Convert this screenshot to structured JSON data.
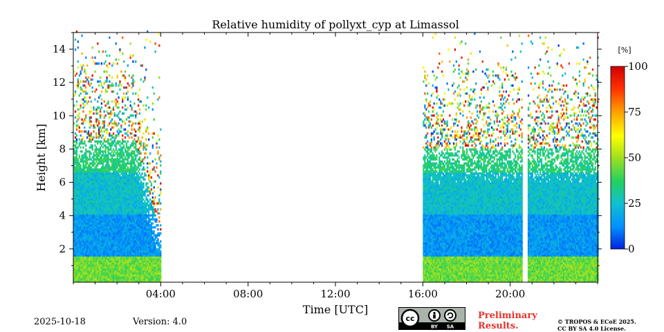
{
  "chart_data": {
    "type": "heatmap",
    "title": "Relative humidity of pollyxt_cyp at Limassol",
    "xlabel": "Time [UTC]",
    "ylabel": "Height [km]",
    "xlim": [
      0,
      24
    ],
    "ylim": [
      0,
      15
    ],
    "x_ticks": [
      4,
      8,
      12,
      16,
      20
    ],
    "x_tick_labels": [
      "04:00",
      "08:00",
      "12:00",
      "16:00",
      "20:00"
    ],
    "y_ticks": [
      2,
      4,
      6,
      8,
      10,
      12,
      14
    ],
    "y_tick_labels": [
      "2",
      "4",
      "6",
      "8",
      "10",
      "12",
      "14"
    ],
    "colorbar": {
      "unit": "[%]",
      "range": [
        0,
        100
      ],
      "ticks": [
        0,
        25,
        50,
        75,
        100
      ],
      "tick_labels": [
        "0",
        "25",
        "50",
        "75",
        "100"
      ],
      "colormap": [
        "#0022dd",
        "#0090ff",
        "#10c0d0",
        "#22d060",
        "#a0e020",
        "#ffff00",
        "#ffa000",
        "#ff3000",
        "#d00000"
      ]
    },
    "data_segments": [
      {
        "start_hour": 0.0,
        "end_hour": 4.0,
        "cloud_top_km": 8.5
      },
      {
        "start_hour": 16.0,
        "end_hour": 24.0,
        "cloud_top_km": 8.0
      }
    ],
    "gaps": [
      {
        "start_hour": 4.0,
        "end_hour": 16.0
      },
      {
        "start_hour": 20.55,
        "end_hour": 20.75
      }
    ],
    "layers": [
      {
        "segment": "both",
        "bottom_km": 0.0,
        "top_km": 1.5,
        "rh_percent": 45
      },
      {
        "segment": "both",
        "bottom_km": 1.5,
        "top_km": 4.0,
        "rh_percent": 15
      },
      {
        "segment": "both",
        "bottom_km": 4.0,
        "top_km": 6.5,
        "rh_percent": 25
      },
      {
        "segment": "both",
        "bottom_km": 6.5,
        "top_km": 8.5,
        "rh_percent": 35
      }
    ]
  },
  "footer": {
    "date": "2025-10-18",
    "version": "Version: 4.0",
    "license_badge": [
      "cc",
      "BY",
      "SA"
    ],
    "preliminary_line1": "Preliminary",
    "preliminary_line2": "Results.",
    "copyright_line1": "© TROPOS & ECoE 2025.",
    "copyright_line2": "CC BY SA 4.0 License."
  }
}
